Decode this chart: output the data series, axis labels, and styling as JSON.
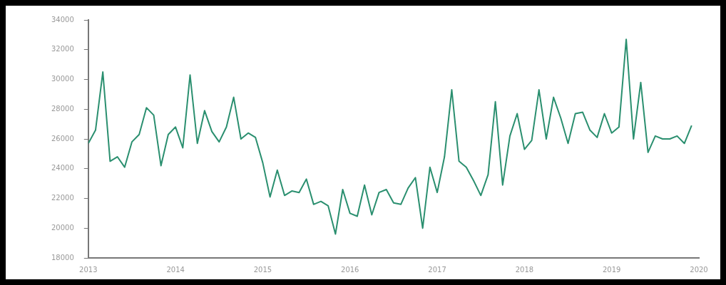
{
  "chart_data": {
    "type": "line",
    "x": [
      "2013-01",
      "2013-02",
      "2013-03",
      "2013-04",
      "2013-05",
      "2013-06",
      "2013-07",
      "2013-08",
      "2013-09",
      "2013-10",
      "2013-11",
      "2013-12",
      "2014-01",
      "2014-02",
      "2014-03",
      "2014-04",
      "2014-05",
      "2014-06",
      "2014-07",
      "2014-08",
      "2014-09",
      "2014-10",
      "2014-11",
      "2014-12",
      "2015-01",
      "2015-02",
      "2015-03",
      "2015-04",
      "2015-05",
      "2015-06",
      "2015-07",
      "2015-08",
      "2015-09",
      "2015-10",
      "2015-11",
      "2015-12",
      "2016-01",
      "2016-02",
      "2016-03",
      "2016-04",
      "2016-05",
      "2016-06",
      "2016-07",
      "2016-08",
      "2016-09",
      "2016-10",
      "2016-11",
      "2016-12",
      "2017-01",
      "2017-02",
      "2017-03",
      "2017-04",
      "2017-05",
      "2017-06",
      "2017-07",
      "2017-08",
      "2017-09",
      "2017-10",
      "2017-11",
      "2017-12",
      "2018-01",
      "2018-02",
      "2018-03",
      "2018-04",
      "2018-05",
      "2018-06",
      "2018-07",
      "2018-08",
      "2018-09",
      "2018-10",
      "2018-11",
      "2018-12",
      "2019-01",
      "2019-02",
      "2019-03",
      "2019-04",
      "2019-05",
      "2019-06",
      "2019-07",
      "2019-08",
      "2019-09",
      "2019-10",
      "2019-11",
      "2019-12"
    ],
    "series": [
      {
        "color": "#2a8f6f",
        "values": [
          25700,
          26600,
          30500,
          24500,
          24800,
          24100,
          25800,
          26300,
          28100,
          27600,
          24200,
          26300,
          26800,
          25400,
          30300,
          25700,
          27900,
          26500,
          25800,
          26800,
          28800,
          26000,
          26400,
          26100,
          24400,
          22100,
          23900,
          22200,
          22500,
          22400,
          23300,
          21600,
          21800,
          21500,
          19600,
          22600,
          21000,
          20800,
          22900,
          20900,
          22400,
          22600,
          21700,
          21600,
          22700,
          23400,
          20000,
          24100,
          22400,
          24800,
          29300,
          24500,
          24100,
          23200,
          22200,
          23600,
          28500,
          22900,
          26200,
          27700,
          25300,
          25900,
          29300,
          26000,
          28800,
          27400,
          25700,
          27700,
          27800,
          26600,
          26100,
          27700,
          26400,
          26800,
          32700,
          26000,
          29800,
          25100,
          26200,
          26000,
          26000,
          26200,
          25700,
          26900
        ]
      }
    ],
    "xlim": [
      "2013",
      "2020"
    ],
    "xticks": [
      "2013",
      "2014",
      "2015",
      "2016",
      "2017",
      "2018",
      "2019",
      "2020"
    ],
    "ylim": [
      18000,
      34000
    ],
    "yticks": [
      18000,
      20000,
      22000,
      24000,
      26000,
      28000,
      30000,
      32000,
      34000
    ],
    "grid": false,
    "legend": false,
    "marker": "none",
    "line_style": "solid"
  }
}
